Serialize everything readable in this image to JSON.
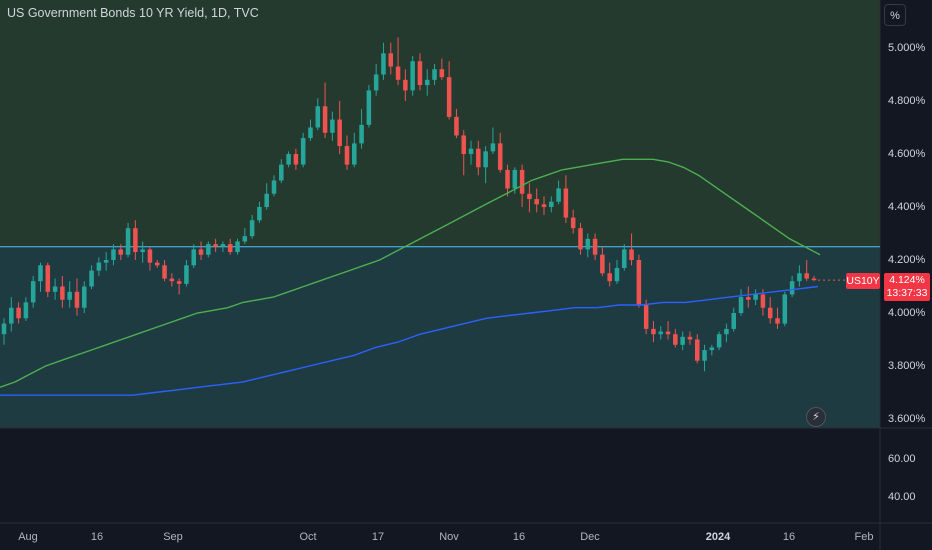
{
  "header": {
    "title": "US Government Bonds 10 YR Yield, 1D, TVC",
    "unit_button": "%"
  },
  "price_axis": {
    "labels": [
      "5.000%",
      "4.800%",
      "4.600%",
      "4.400%",
      "4.200%",
      "4.000%",
      "3.800%",
      "3.600%"
    ]
  },
  "indicator_axis": {
    "labels": [
      "60.00",
      "40.00"
    ]
  },
  "time_axis": {
    "labels": [
      "Aug",
      "16",
      "Sep",
      "Oct",
      "17",
      "Nov",
      "16",
      "Dec",
      "2024",
      "16",
      "Feb"
    ]
  },
  "badge": {
    "symbol": "US10Y",
    "last_price": "4.124%",
    "countdown": "13:37:33"
  },
  "colors": {
    "up": "#26a69a",
    "down": "#ef5350",
    "ma_slow": "#2962ff",
    "ma_fast": "#4caf50",
    "level_line": "#4fc3f7",
    "zone_above": "#243a2f",
    "zone_below": "#1f3b42"
  },
  "chart_data": {
    "type": "candlestick",
    "title": "US Government Bonds 10 YR Yield, 1D, TVC",
    "xlabel": "",
    "ylabel": "%",
    "ylim": [
      3.55,
      5.15
    ],
    "grid": false,
    "horizontal_line": 4.25,
    "last_price": 4.124,
    "candles": [
      {
        "o": 3.92,
        "h": 3.98,
        "l": 3.88,
        "c": 3.96
      },
      {
        "o": 3.96,
        "h": 4.06,
        "l": 3.93,
        "c": 4.02
      },
      {
        "o": 4.02,
        "h": 4.04,
        "l": 3.96,
        "c": 3.98
      },
      {
        "o": 3.98,
        "h": 4.06,
        "l": 3.97,
        "c": 4.04
      },
      {
        "o": 4.04,
        "h": 4.14,
        "l": 4.02,
        "c": 4.12
      },
      {
        "o": 4.12,
        "h": 4.19,
        "l": 4.08,
        "c": 4.18
      },
      {
        "o": 4.18,
        "h": 4.19,
        "l": 4.06,
        "c": 4.08
      },
      {
        "o": 4.08,
        "h": 4.13,
        "l": 4.05,
        "c": 4.1
      },
      {
        "o": 4.1,
        "h": 4.14,
        "l": 4.02,
        "c": 4.05
      },
      {
        "o": 4.05,
        "h": 4.12,
        "l": 4.02,
        "c": 4.08
      },
      {
        "o": 4.08,
        "h": 4.13,
        "l": 3.99,
        "c": 4.02
      },
      {
        "o": 4.02,
        "h": 4.12,
        "l": 4.0,
        "c": 4.1
      },
      {
        "o": 4.1,
        "h": 4.18,
        "l": 4.09,
        "c": 4.16
      },
      {
        "o": 4.16,
        "h": 4.21,
        "l": 4.14,
        "c": 4.19
      },
      {
        "o": 4.19,
        "h": 4.23,
        "l": 4.16,
        "c": 4.2
      },
      {
        "o": 4.2,
        "h": 4.26,
        "l": 4.18,
        "c": 4.24
      },
      {
        "o": 4.24,
        "h": 4.26,
        "l": 4.2,
        "c": 4.22
      },
      {
        "o": 4.22,
        "h": 4.34,
        "l": 4.21,
        "c": 4.32
      },
      {
        "o": 4.32,
        "h": 4.35,
        "l": 4.2,
        "c": 4.23
      },
      {
        "o": 4.23,
        "h": 4.27,
        "l": 4.19,
        "c": 4.24
      },
      {
        "o": 4.24,
        "h": 4.25,
        "l": 4.16,
        "c": 4.19
      },
      {
        "o": 4.19,
        "h": 4.2,
        "l": 4.17,
        "c": 4.18
      },
      {
        "o": 4.18,
        "h": 4.2,
        "l": 4.12,
        "c": 4.13
      },
      {
        "o": 4.13,
        "h": 4.15,
        "l": 4.1,
        "c": 4.12
      },
      {
        "o": 4.12,
        "h": 4.13,
        "l": 4.07,
        "c": 4.11
      },
      {
        "o": 4.11,
        "h": 4.2,
        "l": 4.1,
        "c": 4.18
      },
      {
        "o": 4.18,
        "h": 4.26,
        "l": 4.17,
        "c": 4.24
      },
      {
        "o": 4.24,
        "h": 4.27,
        "l": 4.2,
        "c": 4.22
      },
      {
        "o": 4.22,
        "h": 4.27,
        "l": 4.21,
        "c": 4.26
      },
      {
        "o": 4.26,
        "h": 4.28,
        "l": 4.23,
        "c": 4.25
      },
      {
        "o": 4.25,
        "h": 4.27,
        "l": 4.23,
        "c": 4.26
      },
      {
        "o": 4.26,
        "h": 4.28,
        "l": 4.22,
        "c": 4.23
      },
      {
        "o": 4.23,
        "h": 4.28,
        "l": 4.22,
        "c": 4.27
      },
      {
        "o": 4.27,
        "h": 4.32,
        "l": 4.26,
        "c": 4.29
      },
      {
        "o": 4.29,
        "h": 4.37,
        "l": 4.28,
        "c": 4.35
      },
      {
        "o": 4.35,
        "h": 4.42,
        "l": 4.34,
        "c": 4.4
      },
      {
        "o": 4.4,
        "h": 4.49,
        "l": 4.39,
        "c": 4.45
      },
      {
        "o": 4.45,
        "h": 4.52,
        "l": 4.44,
        "c": 4.5
      },
      {
        "o": 4.5,
        "h": 4.58,
        "l": 4.49,
        "c": 4.56
      },
      {
        "o": 4.56,
        "h": 4.61,
        "l": 4.55,
        "c": 4.6
      },
      {
        "o": 4.6,
        "h": 4.62,
        "l": 4.54,
        "c": 4.56
      },
      {
        "o": 4.56,
        "h": 4.68,
        "l": 4.55,
        "c": 4.66
      },
      {
        "o": 4.66,
        "h": 4.73,
        "l": 4.65,
        "c": 4.7
      },
      {
        "o": 4.7,
        "h": 4.81,
        "l": 4.69,
        "c": 4.78
      },
      {
        "o": 4.78,
        "h": 4.87,
        "l": 4.66,
        "c": 4.68
      },
      {
        "o": 4.68,
        "h": 4.76,
        "l": 4.65,
        "c": 4.73
      },
      {
        "o": 4.73,
        "h": 4.8,
        "l": 4.6,
        "c": 4.63
      },
      {
        "o": 4.63,
        "h": 4.67,
        "l": 4.54,
        "c": 4.56
      },
      {
        "o": 4.56,
        "h": 4.68,
        "l": 4.55,
        "c": 4.64
      },
      {
        "o": 4.64,
        "h": 4.77,
        "l": 4.62,
        "c": 4.71
      },
      {
        "o": 4.71,
        "h": 4.86,
        "l": 4.7,
        "c": 4.84
      },
      {
        "o": 4.84,
        "h": 4.94,
        "l": 4.82,
        "c": 4.9
      },
      {
        "o": 4.9,
        "h": 5.02,
        "l": 4.88,
        "c": 4.98
      },
      {
        "o": 4.98,
        "h": 5.02,
        "l": 4.9,
        "c": 4.93
      },
      {
        "o": 4.93,
        "h": 5.04,
        "l": 4.86,
        "c": 4.88
      },
      {
        "o": 4.88,
        "h": 4.92,
        "l": 4.8,
        "c": 4.84
      },
      {
        "o": 4.84,
        "h": 4.97,
        "l": 4.82,
        "c": 4.95
      },
      {
        "o": 4.95,
        "h": 4.98,
        "l": 4.84,
        "c": 4.86
      },
      {
        "o": 4.86,
        "h": 4.92,
        "l": 4.82,
        "c": 4.88
      },
      {
        "o": 4.88,
        "h": 4.94,
        "l": 4.86,
        "c": 4.92
      },
      {
        "o": 4.92,
        "h": 4.96,
        "l": 4.88,
        "c": 4.89
      },
      {
        "o": 4.89,
        "h": 4.95,
        "l": 4.73,
        "c": 4.74
      },
      {
        "o": 4.74,
        "h": 4.77,
        "l": 4.66,
        "c": 4.67
      },
      {
        "o": 4.67,
        "h": 4.69,
        "l": 4.52,
        "c": 4.6
      },
      {
        "o": 4.6,
        "h": 4.65,
        "l": 4.56,
        "c": 4.62
      },
      {
        "o": 4.62,
        "h": 4.65,
        "l": 4.52,
        "c": 4.55
      },
      {
        "o": 4.55,
        "h": 4.63,
        "l": 4.49,
        "c": 4.61
      },
      {
        "o": 4.61,
        "h": 4.7,
        "l": 4.6,
        "c": 4.64
      },
      {
        "o": 4.64,
        "h": 4.68,
        "l": 4.53,
        "c": 4.54
      },
      {
        "o": 4.54,
        "h": 4.56,
        "l": 4.44,
        "c": 4.47
      },
      {
        "o": 4.47,
        "h": 4.55,
        "l": 4.45,
        "c": 4.54
      },
      {
        "o": 4.54,
        "h": 4.56,
        "l": 4.4,
        "c": 4.45
      },
      {
        "o": 4.45,
        "h": 4.49,
        "l": 4.38,
        "c": 4.43
      },
      {
        "o": 4.43,
        "h": 4.47,
        "l": 4.38,
        "c": 4.41
      },
      {
        "o": 4.41,
        "h": 4.44,
        "l": 4.37,
        "c": 4.4
      },
      {
        "o": 4.4,
        "h": 4.44,
        "l": 4.38,
        "c": 4.42
      },
      {
        "o": 4.42,
        "h": 4.5,
        "l": 4.41,
        "c": 4.47
      },
      {
        "o": 4.47,
        "h": 4.52,
        "l": 4.34,
        "c": 4.36
      },
      {
        "o": 4.36,
        "h": 4.39,
        "l": 4.3,
        "c": 4.32
      },
      {
        "o": 4.32,
        "h": 4.34,
        "l": 4.22,
        "c": 4.24
      },
      {
        "o": 4.24,
        "h": 4.3,
        "l": 4.21,
        "c": 4.28
      },
      {
        "o": 4.28,
        "h": 4.3,
        "l": 4.2,
        "c": 4.22
      },
      {
        "o": 4.22,
        "h": 4.25,
        "l": 4.14,
        "c": 4.15
      },
      {
        "o": 4.15,
        "h": 4.19,
        "l": 4.1,
        "c": 4.12
      },
      {
        "o": 4.12,
        "h": 4.2,
        "l": 4.11,
        "c": 4.17
      },
      {
        "o": 4.17,
        "h": 4.26,
        "l": 4.16,
        "c": 4.24
      },
      {
        "o": 4.24,
        "h": 4.3,
        "l": 4.18,
        "c": 4.2
      },
      {
        "o": 4.2,
        "h": 4.22,
        "l": 4.02,
        "c": 4.03
      },
      {
        "o": 4.03,
        "h": 4.05,
        "l": 3.92,
        "c": 3.94
      },
      {
        "o": 3.94,
        "h": 3.97,
        "l": 3.89,
        "c": 3.92
      },
      {
        "o": 3.92,
        "h": 3.95,
        "l": 3.9,
        "c": 3.93
      },
      {
        "o": 3.93,
        "h": 3.97,
        "l": 3.9,
        "c": 3.92
      },
      {
        "o": 3.92,
        "h": 3.94,
        "l": 3.87,
        "c": 3.88
      },
      {
        "o": 3.88,
        "h": 3.93,
        "l": 3.86,
        "c": 3.91
      },
      {
        "o": 3.91,
        "h": 3.93,
        "l": 3.88,
        "c": 3.9
      },
      {
        "o": 3.9,
        "h": 3.92,
        "l": 3.81,
        "c": 3.82
      },
      {
        "o": 3.82,
        "h": 3.88,
        "l": 3.78,
        "c": 3.86
      },
      {
        "o": 3.86,
        "h": 3.88,
        "l": 3.84,
        "c": 3.87
      },
      {
        "o": 3.87,
        "h": 3.93,
        "l": 3.86,
        "c": 3.92
      },
      {
        "o": 3.92,
        "h": 3.96,
        "l": 3.89,
        "c": 3.94
      },
      {
        "o": 3.94,
        "h": 4.02,
        "l": 3.93,
        "c": 4.0
      },
      {
        "o": 4.0,
        "h": 4.09,
        "l": 3.99,
        "c": 4.06
      },
      {
        "o": 4.06,
        "h": 4.1,
        "l": 4.02,
        "c": 4.05
      },
      {
        "o": 4.05,
        "h": 4.09,
        "l": 4.03,
        "c": 4.07
      },
      {
        "o": 4.07,
        "h": 4.09,
        "l": 3.99,
        "c": 4.02
      },
      {
        "o": 4.02,
        "h": 4.06,
        "l": 3.96,
        "c": 3.98
      },
      {
        "o": 3.98,
        "h": 4.02,
        "l": 3.94,
        "c": 3.96
      },
      {
        "o": 3.96,
        "h": 4.08,
        "l": 3.95,
        "c": 4.07
      },
      {
        "o": 4.07,
        "h": 4.14,
        "l": 4.06,
        "c": 4.12
      },
      {
        "o": 4.12,
        "h": 4.18,
        "l": 4.1,
        "c": 4.15
      },
      {
        "o": 4.15,
        "h": 4.2,
        "l": 4.12,
        "c": 4.13
      },
      {
        "o": 4.13,
        "h": 4.14,
        "l": 4.12,
        "c": 4.124
      }
    ],
    "series": [
      {
        "name": "",
        "type": "line",
        "color": "#4caf50",
        "values": [
          3.72,
          3.74,
          3.77,
          3.8,
          3.82,
          3.84,
          3.86,
          3.88,
          3.9,
          3.92,
          3.94,
          3.96,
          3.98,
          4.0,
          4.01,
          4.02,
          4.04,
          4.05,
          4.06,
          4.08,
          4.1,
          4.12,
          4.14,
          4.16,
          4.18,
          4.2,
          4.23,
          4.26,
          4.29,
          4.32,
          4.35,
          4.38,
          4.41,
          4.44,
          4.47,
          4.5,
          4.52,
          4.54,
          4.55,
          4.56,
          4.57,
          4.58,
          4.58,
          4.58,
          4.57,
          4.55,
          4.52,
          4.48,
          4.44,
          4.4,
          4.36,
          4.32,
          4.28,
          4.25,
          4.22
        ]
      },
      {
        "name": "",
        "type": "line",
        "color": "#2962ff",
        "values": [
          3.69,
          3.69,
          3.69,
          3.69,
          3.69,
          3.69,
          3.69,
          3.7,
          3.71,
          3.72,
          3.73,
          3.74,
          3.76,
          3.78,
          3.8,
          3.82,
          3.84,
          3.87,
          3.89,
          3.92,
          3.94,
          3.96,
          3.98,
          3.99,
          4.0,
          4.01,
          4.02,
          4.02,
          4.03,
          4.03,
          4.04,
          4.04,
          4.05,
          4.06,
          4.07,
          4.08,
          4.09,
          4.1
        ]
      }
    ]
  }
}
